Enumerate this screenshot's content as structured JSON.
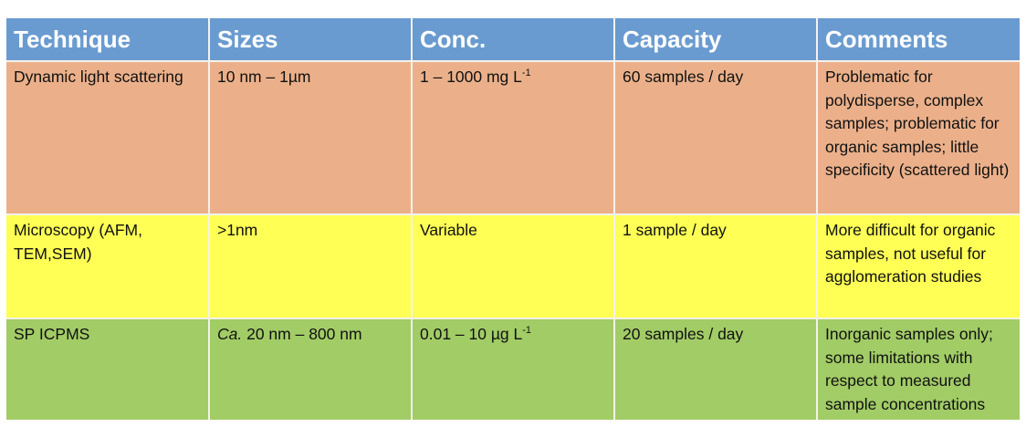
{
  "colors": {
    "header_bg": "#6a9bd0",
    "header_text": "#ffffff",
    "row_dls_bg": "#ebb08a",
    "row_microscopy_bg": "#ffff55",
    "row_spicpms_bg": "#a2cc66",
    "grid_line": "#f4f1ec"
  },
  "table": {
    "headers": [
      "Technique",
      "Sizes",
      "Conc.",
      "Capacity",
      "Comments"
    ],
    "rows": [
      {
        "technique": "Dynamic light scattering",
        "sizes": "10 nm – 1µm",
        "conc": {
          "value": "1 – 1000 mg L",
          "superscript": "-1"
        },
        "capacity": "60 samples / day",
        "comments": "Problematic for polydisperse, complex samples; problematic for organic samples; little specificity (scattered light)"
      },
      {
        "technique": "Microscopy (AFM, TEM,SEM)",
        "sizes": ">1nm",
        "conc": {
          "value": "Variable",
          "superscript": null
        },
        "capacity": "1 sample / day",
        "comments": "More difficult for organic samples, not useful for agglomeration studies"
      },
      {
        "technique": "SP ICPMS",
        "sizes": {
          "prefix_italic": "Ca.",
          "value": " 20 nm – 800 nm"
        },
        "conc": {
          "value": "0.01 – 10 µg L",
          "superscript": "-1"
        },
        "capacity": "20 samples / day",
        "comments": "Inorganic samples only; some limitations with respect to measured sample concentrations"
      }
    ]
  }
}
